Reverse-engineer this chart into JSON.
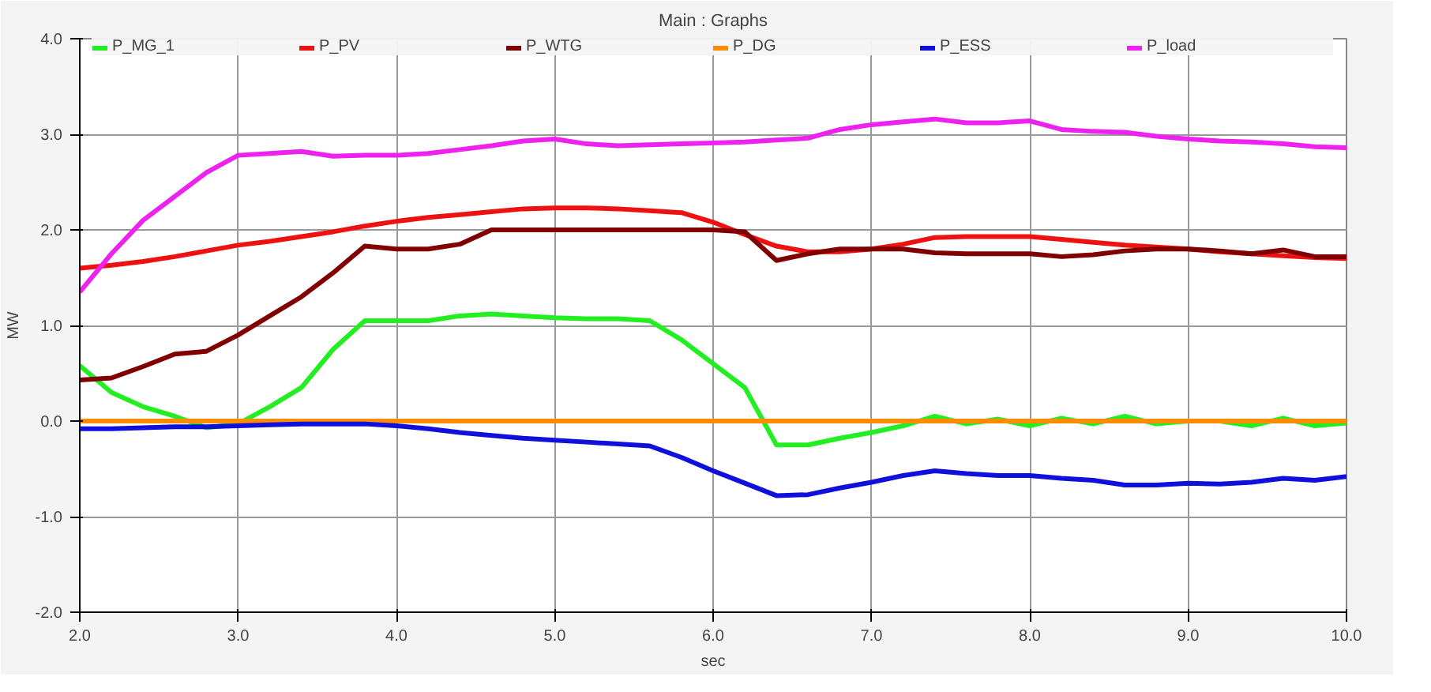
{
  "chart_data": {
    "type": "line",
    "title": "Main : Graphs",
    "xlabel": "sec",
    "ylabel": "MW",
    "x": [
      2.0,
      2.2,
      2.4,
      2.6,
      2.8,
      3.0,
      3.2,
      3.4,
      3.6,
      3.8,
      4.0,
      4.2,
      4.4,
      4.6,
      4.8,
      5.0,
      5.2,
      5.4,
      5.6,
      5.8,
      6.0,
      6.2,
      6.4,
      6.6,
      6.8,
      7.0,
      7.2,
      7.4,
      7.6,
      7.8,
      8.0,
      8.2,
      8.4,
      8.6,
      8.8,
      9.0,
      9.2,
      9.4,
      9.6,
      9.8,
      10.0
    ],
    "series": [
      {
        "name": "P_MG_1",
        "color": "#22ee22",
        "values": [
          0.58,
          0.3,
          0.15,
          0.05,
          -0.07,
          -0.03,
          0.15,
          0.35,
          0.75,
          1.05,
          1.05,
          1.05,
          1.1,
          1.12,
          1.1,
          1.08,
          1.07,
          1.07,
          1.05,
          0.85,
          0.6,
          0.35,
          -0.25,
          -0.25,
          -0.18,
          -0.12,
          -0.05,
          0.05,
          -0.03,
          0.02,
          -0.05,
          0.03,
          -0.03,
          0.05,
          -0.03,
          0.0,
          0.0,
          -0.05,
          0.03,
          -0.05,
          -0.02
        ]
      },
      {
        "name": "P_PV",
        "color": "#ee1111",
        "values": [
          1.6,
          1.63,
          1.67,
          1.72,
          1.78,
          1.84,
          1.88,
          1.93,
          1.98,
          2.04,
          2.09,
          2.13,
          2.16,
          2.19,
          2.22,
          2.23,
          2.23,
          2.22,
          2.2,
          2.18,
          2.08,
          1.95,
          1.83,
          1.77,
          1.77,
          1.8,
          1.85,
          1.92,
          1.93,
          1.93,
          1.93,
          1.9,
          1.87,
          1.84,
          1.82,
          1.8,
          1.77,
          1.75,
          1.73,
          1.71,
          1.7
        ]
      },
      {
        "name": "P_WTG",
        "color": "#800000",
        "values": [
          0.43,
          0.45,
          0.57,
          0.7,
          0.73,
          0.9,
          1.1,
          1.3,
          1.55,
          1.83,
          1.8,
          1.8,
          1.85,
          2.0,
          2.0,
          2.0,
          2.0,
          2.0,
          2.0,
          2.0,
          2.0,
          1.98,
          1.68,
          1.75,
          1.8,
          1.8,
          1.8,
          1.76,
          1.75,
          1.75,
          1.75,
          1.72,
          1.74,
          1.78,
          1.8,
          1.8,
          1.78,
          1.75,
          1.79,
          1.72,
          1.72
        ]
      },
      {
        "name": "P_DG",
        "color": "#ff8c00",
        "values": [
          0,
          0,
          0,
          0,
          0,
          0,
          0,
          0,
          0,
          0,
          0,
          0,
          0,
          0,
          0,
          0,
          0,
          0,
          0,
          0,
          0,
          0,
          0,
          0,
          0,
          0,
          0,
          0,
          0,
          0,
          0,
          0,
          0,
          0,
          0,
          0,
          0,
          0,
          0,
          0,
          0
        ]
      },
      {
        "name": "P_ESS",
        "color": "#1010dd",
        "values": [
          -0.08,
          -0.08,
          -0.07,
          -0.06,
          -0.06,
          -0.05,
          -0.04,
          -0.03,
          -0.03,
          -0.03,
          -0.05,
          -0.08,
          -0.12,
          -0.15,
          -0.18,
          -0.2,
          -0.22,
          -0.24,
          -0.26,
          -0.38,
          -0.52,
          -0.65,
          -0.78,
          -0.77,
          -0.7,
          -0.64,
          -0.57,
          -0.52,
          -0.55,
          -0.57,
          -0.57,
          -0.6,
          -0.62,
          -0.67,
          -0.67,
          -0.65,
          -0.66,
          -0.64,
          -0.6,
          -0.62,
          -0.58
        ]
      },
      {
        "name": "P_load",
        "color": "#ee22ee",
        "values": [
          1.35,
          1.75,
          2.1,
          2.35,
          2.6,
          2.78,
          2.8,
          2.82,
          2.77,
          2.78,
          2.78,
          2.8,
          2.84,
          2.88,
          2.93,
          2.95,
          2.9,
          2.88,
          2.89,
          2.9,
          2.91,
          2.92,
          2.94,
          2.96,
          3.05,
          3.1,
          3.13,
          3.16,
          3.12,
          3.12,
          3.14,
          3.05,
          3.03,
          3.02,
          2.98,
          2.95,
          2.93,
          2.92,
          2.9,
          2.87,
          2.86
        ]
      }
    ],
    "xlim": [
      2,
      10
    ],
    "ylim": [
      -2,
      4
    ],
    "xticks": [
      {
        "value": 2,
        "label": "2.0"
      },
      {
        "value": 3,
        "label": "3.0"
      },
      {
        "value": 4,
        "label": "4.0"
      },
      {
        "value": 5,
        "label": "5.0"
      },
      {
        "value": 6,
        "label": "6.0"
      },
      {
        "value": 7,
        "label": "7.0"
      },
      {
        "value": 8,
        "label": "8.0"
      },
      {
        "value": 9,
        "label": "9.0"
      },
      {
        "value": 10,
        "label": "10.0"
      }
    ],
    "yticks": [
      {
        "value": -2,
        "label": "-2.0"
      },
      {
        "value": -1,
        "label": "-1.0"
      },
      {
        "value": 0,
        "label": "0.0"
      },
      {
        "value": 1,
        "label": "1.0"
      },
      {
        "value": 2,
        "label": "2.0"
      },
      {
        "value": 3,
        "label": "3.0"
      },
      {
        "value": 4,
        "label": "4.0"
      }
    ],
    "grid": true,
    "legend": "top",
    "marker": "none",
    "line_style": "solid"
  }
}
